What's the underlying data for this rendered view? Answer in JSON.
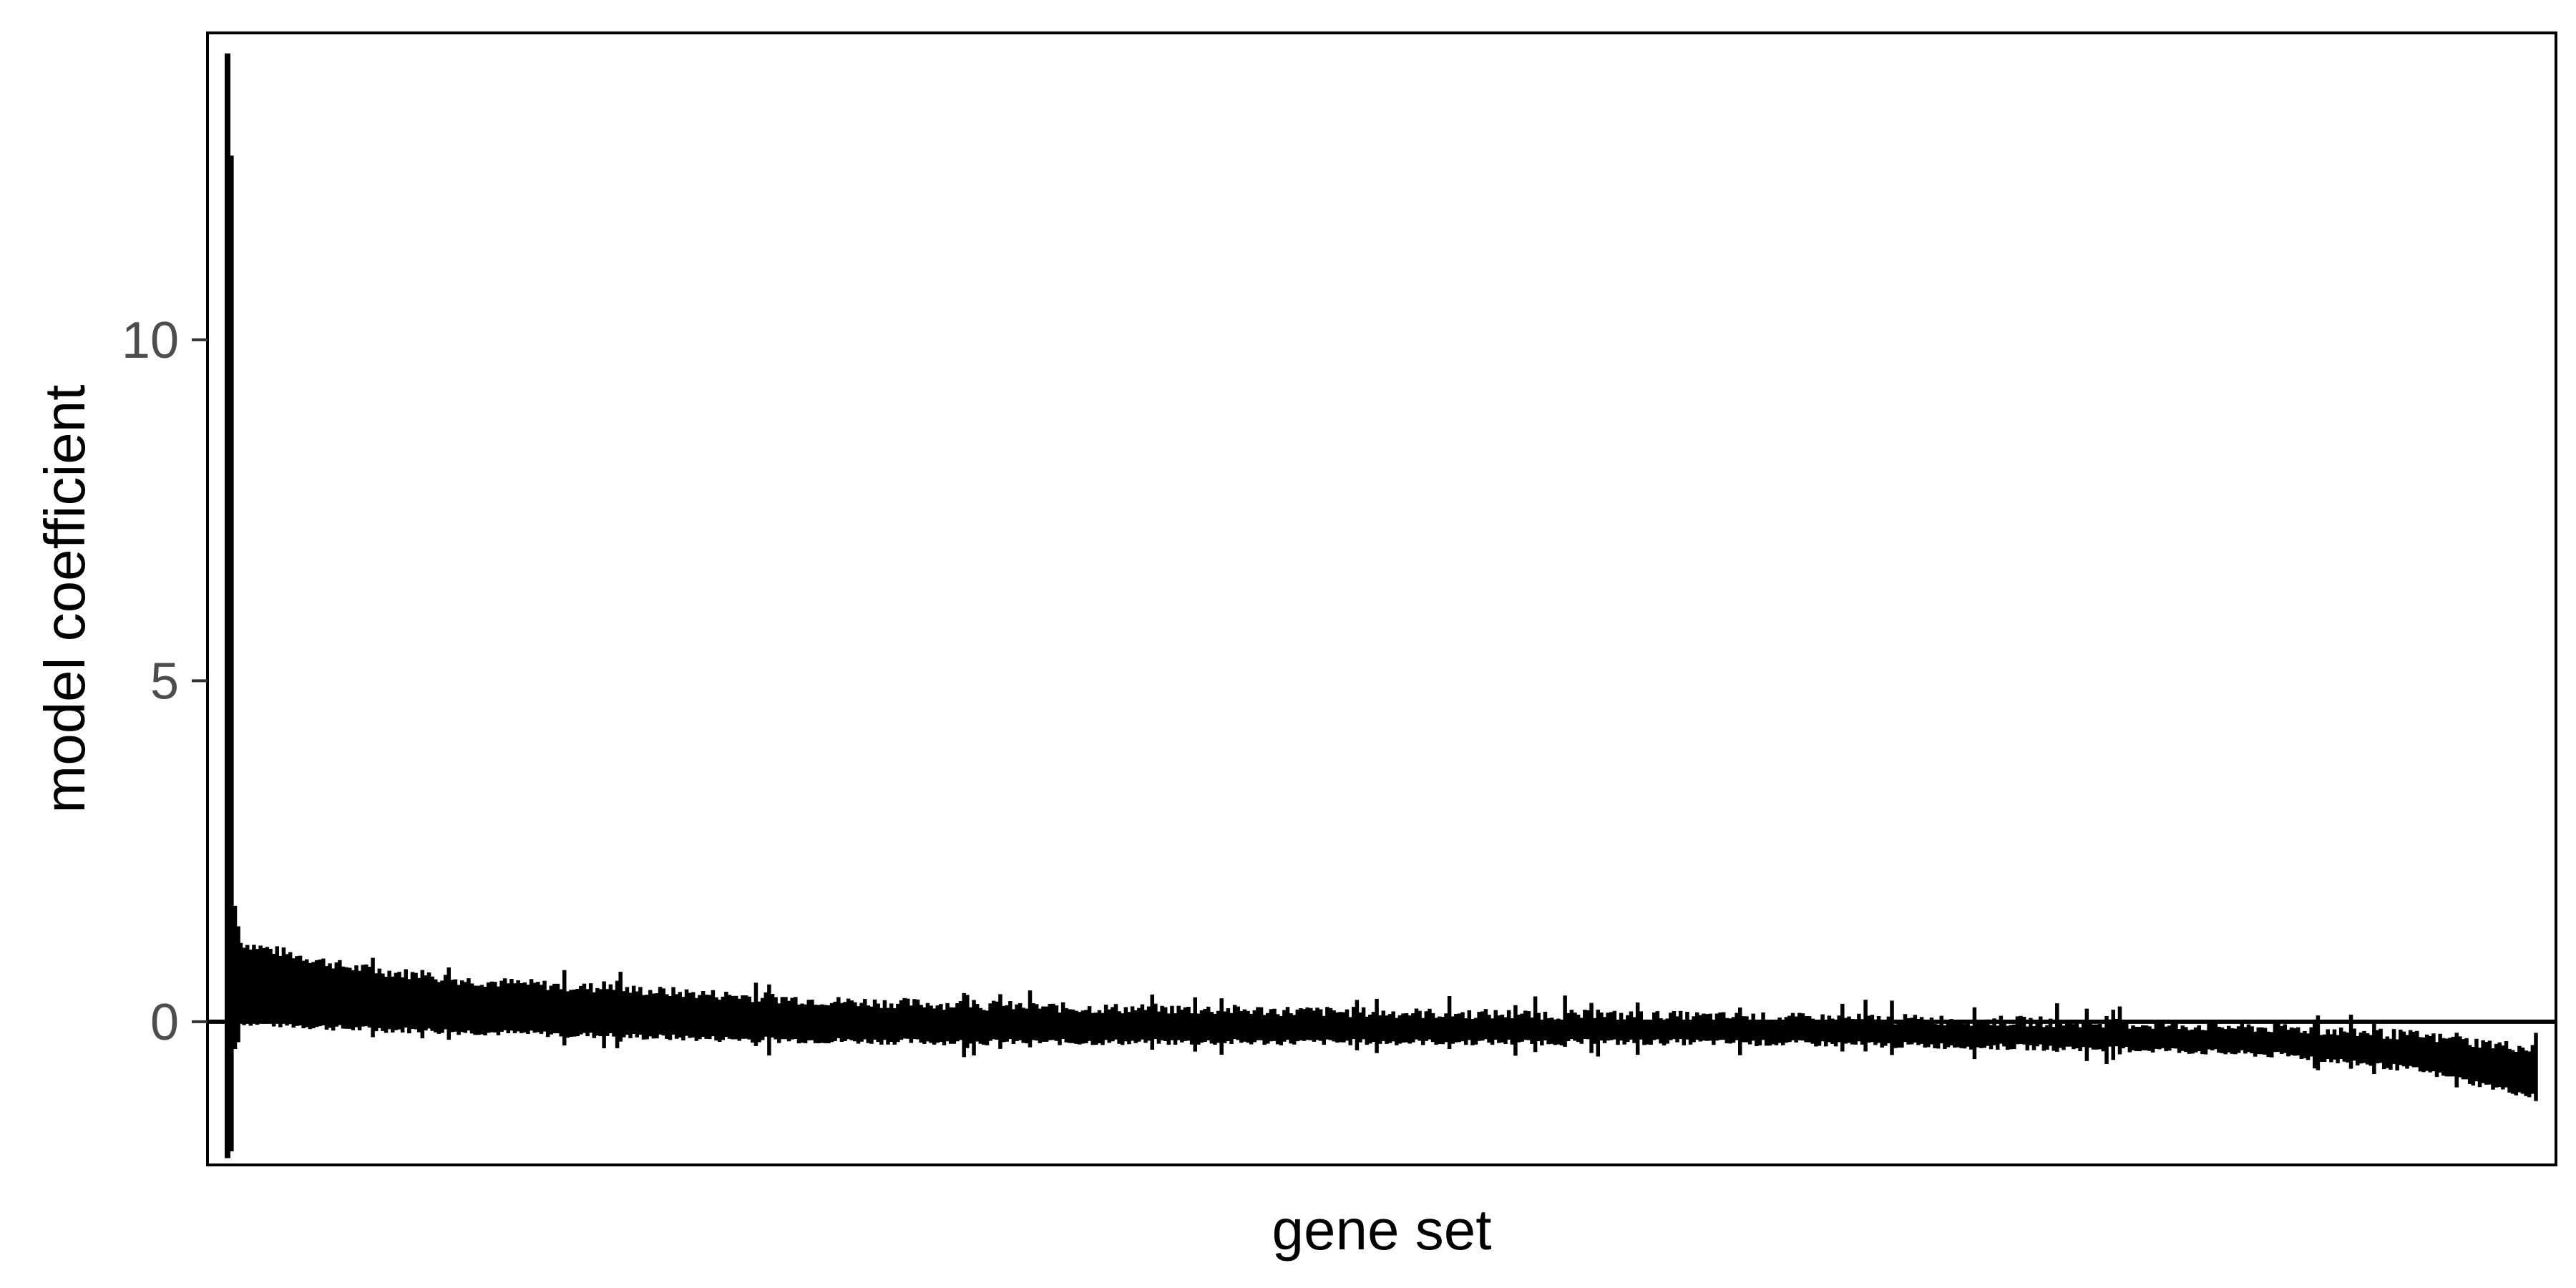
{
  "chart_data": {
    "type": "bar",
    "title": "",
    "xlabel": "gene set",
    "ylabel": "model coefficient",
    "ylim": [
      -2.1,
      14.5
    ],
    "yticks": [
      0,
      5,
      10
    ],
    "x_ticks_shown": false,
    "grid": false,
    "legend": "none",
    "n_gene_sets": 700,
    "series": [
      {
        "name": "error bar",
        "description": "vertical intervals per gene set sorted by coefficient",
        "first_intervals": [
          {
            "rank": 1,
            "low": -2.0,
            "high": 14.2
          },
          {
            "rank": 2,
            "low": -1.9,
            "high": 12.7
          },
          {
            "rank": 3,
            "low": -0.4,
            "high": 1.7
          },
          {
            "rank": 4,
            "low": -0.3,
            "high": 1.4
          }
        ],
        "trend_upper": [
          1.2,
          0.8,
          0.6,
          0.5,
          0.4,
          0.3,
          0.25,
          0.2,
          0.18,
          0.15,
          0.12,
          0.1,
          0.08,
          0.05,
          0.03,
          0.0,
          -0.05,
          -0.1,
          -0.2,
          -0.4
        ],
        "trend_lower": [
          0.0,
          -0.1,
          -0.15,
          -0.2,
          -0.25,
          -0.28,
          -0.3,
          -0.3,
          -0.3,
          -0.3,
          -0.3,
          -0.3,
          -0.3,
          -0.32,
          -0.35,
          -0.38,
          -0.42,
          -0.5,
          -0.7,
          -1.1
        ]
      }
    ],
    "reference_line": 0
  }
}
